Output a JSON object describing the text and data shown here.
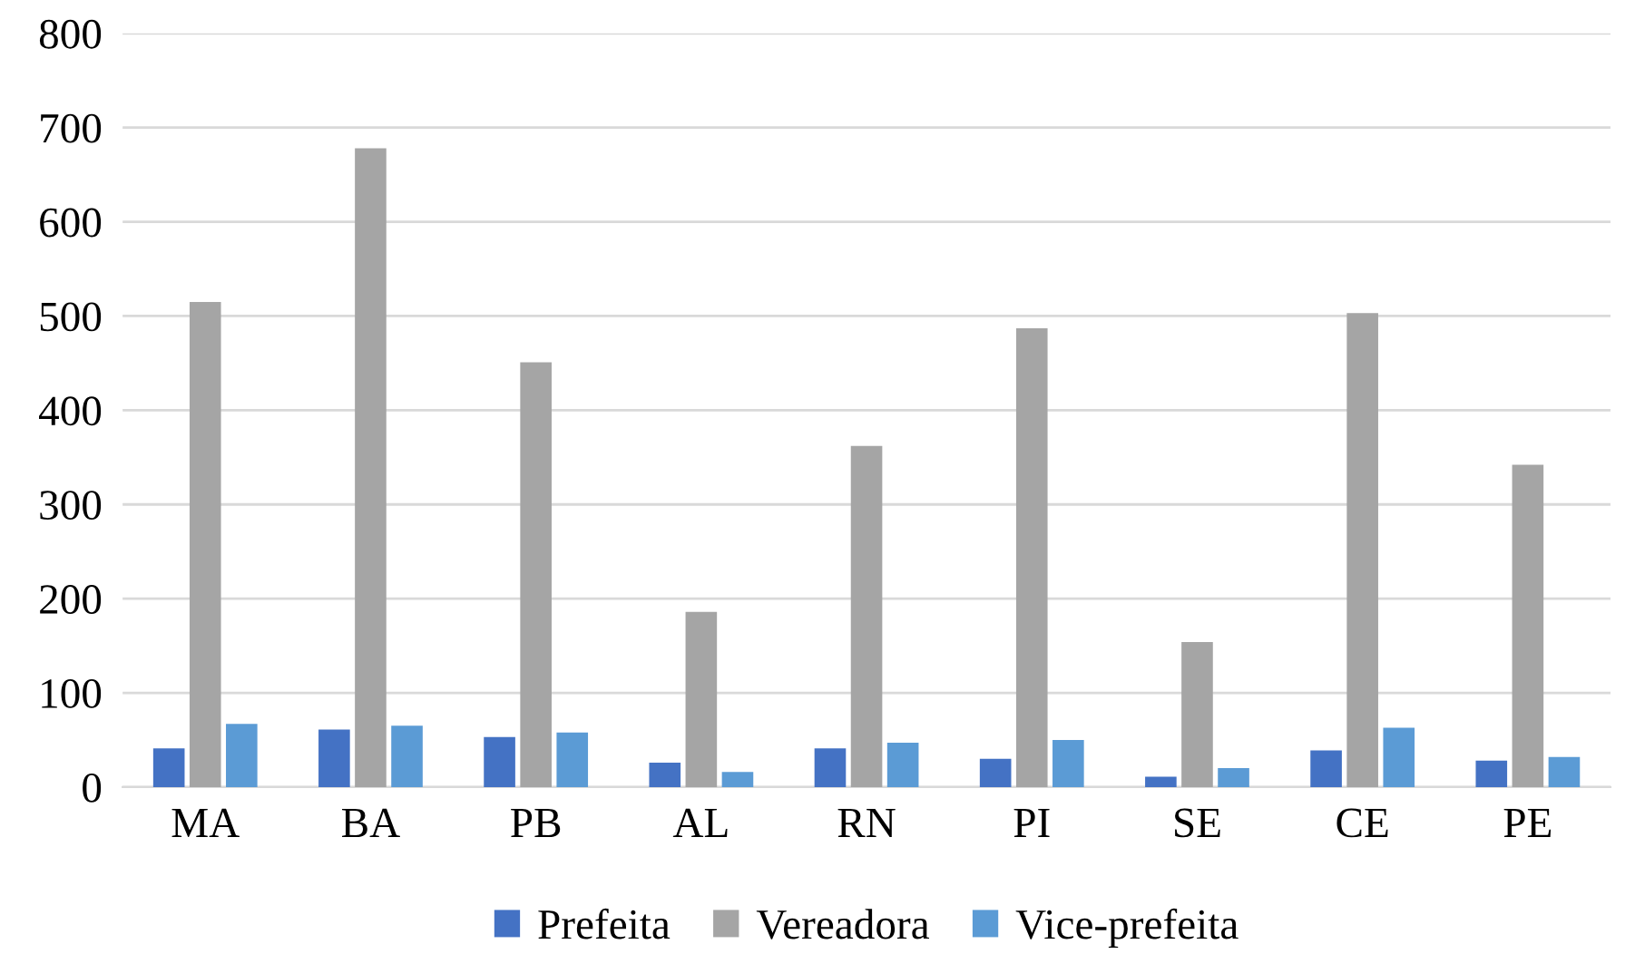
{
  "chart_data": {
    "type": "bar",
    "categories": [
      "MA",
      "BA",
      "PB",
      "AL",
      "RN",
      "PI",
      "SE",
      "CE",
      "PE"
    ],
    "series": [
      {
        "name": "Prefeita",
        "color": "#4472c4",
        "values": [
          41,
          61,
          53,
          26,
          41,
          30,
          11,
          39,
          28
        ]
      },
      {
        "name": "Vereadora",
        "color": "#a5a5a5",
        "values": [
          515,
          678,
          451,
          186,
          362,
          487,
          154,
          503,
          342
        ]
      },
      {
        "name": "Vice-prefeita",
        "color": "#5b9bd5",
        "values": [
          67,
          65,
          58,
          16,
          47,
          50,
          20,
          63,
          32
        ]
      }
    ],
    "ylim": [
      0,
      800
    ],
    "yticks": [
      0,
      100,
      200,
      300,
      400,
      500,
      600,
      700,
      800
    ],
    "grid": "y",
    "legend": "bottom"
  }
}
